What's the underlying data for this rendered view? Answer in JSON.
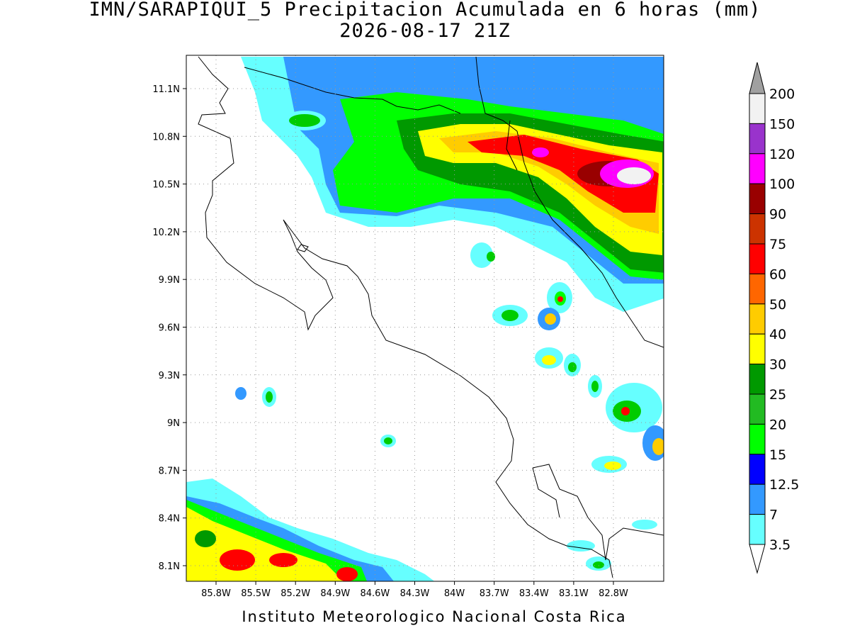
{
  "header": {
    "title": "IMN/SARAPIQUI_5 Precipitacion Acumulada en 6 horas (mm)",
    "subtitle": "2026-08-17 21Z"
  },
  "map": {
    "lat_labels": [
      "11.1N",
      "10.8N",
      "10.5N",
      "10.2N",
      "9.9N",
      "9.6N",
      "9.3N",
      "9N",
      "8.7N",
      "8.4N",
      "8.1N"
    ],
    "lon_labels": [
      "85.8W",
      "85.5W",
      "85.2W",
      "84.9W",
      "84.6W",
      "84.3W",
      "84W",
      "83.7W",
      "83.4W",
      "83.1W",
      "82.8W"
    ]
  },
  "legend": {
    "labels": [
      "200",
      "150",
      "120",
      "100",
      "90",
      "75",
      "60",
      "50",
      "40",
      "30",
      "25",
      "20",
      "15",
      "12.5",
      "7",
      "3.5"
    ],
    "segment_colors": [
      "#f2f2f2",
      "#9933cc",
      "#ff00ff",
      "#990000",
      "#cc3300",
      "#ff0000",
      "#ff6600",
      "#ffcc00",
      "#ffff00",
      "#009900",
      "#22bb22",
      "#00ff00",
      "#0000ff",
      "#3399ff",
      "#66ffff"
    ],
    "over_color": "#a0a0a0",
    "under_color": "#ffffff"
  },
  "footer": {
    "credit": "Instituto Meteorologico Nacional Costa Rica"
  }
}
